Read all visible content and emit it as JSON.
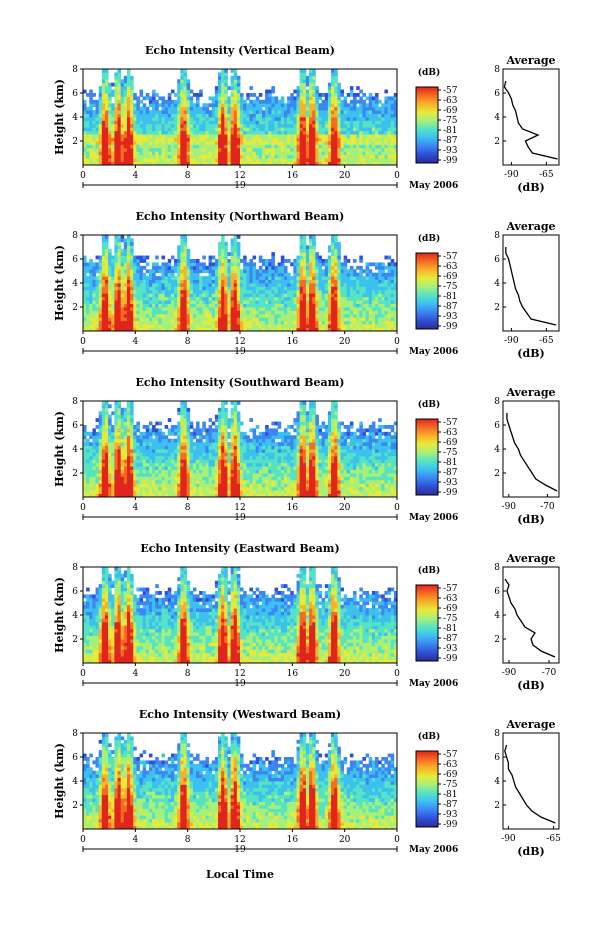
{
  "figure": {
    "x_axis_title": "Local Time",
    "date_label": "May 2006",
    "day_label": "19",
    "x_tick_labels": [
      "0",
      "4",
      "8",
      "12",
      "16",
      "20",
      "0"
    ],
    "y_tick_labels": [
      "2",
      "4",
      "6",
      "8"
    ],
    "height_label": "Height (km)",
    "colorbar_unit": "(dB)",
    "colorbar_ticks": [
      "-57",
      "-63",
      "-69",
      "-75",
      "-81",
      "-87",
      "-93",
      "-99"
    ],
    "average_title": "Average",
    "average_xlabel": "(dB)",
    "colors": {
      "no_data": "#ffffff",
      "colormap": [
        "#2c2c97",
        "#2f4fd6",
        "#3b86f3",
        "#3cc0f0",
        "#55e3c4",
        "#a6f07a",
        "#e8ea3a",
        "#f8b12a",
        "#f66b22",
        "#e0261c"
      ]
    }
  },
  "chart_data": [
    {
      "type": "heatmap",
      "title": "Echo Intensity (Vertical Beam)",
      "x_range": [
        0,
        24
      ],
      "ylim": [
        0,
        8
      ],
      "z_range": [
        -99,
        -57
      ],
      "bright_columns_hours": [
        1.7,
        2.7,
        3.5,
        7.7,
        10.7,
        11.6,
        16.8,
        17.5,
        19.2
      ],
      "average_profile": {
        "xlim": [
          -96,
          -56
        ],
        "xtick_labels": [
          "-90",
          "-65"
        ],
        "height_km": [
          0.5,
          1,
          1.5,
          2,
          2.5,
          3,
          3.5,
          4,
          4.5,
          5,
          5.5,
          6,
          6.5,
          7
        ],
        "power_db": [
          -57,
          -75,
          -78,
          -80,
          -71,
          -82,
          -85,
          -86,
          -87,
          -89,
          -90,
          -92,
          -95,
          -94
        ]
      }
    },
    {
      "type": "heatmap",
      "title": "Echo Intensity (Northward Beam)",
      "x_range": [
        0,
        24
      ],
      "ylim": [
        0,
        8
      ],
      "z_range": [
        -99,
        -57
      ],
      "bright_columns_hours": [
        1.7,
        2.7,
        3.5,
        7.7,
        10.7,
        11.6,
        16.8,
        17.5,
        19.2
      ],
      "average_profile": {
        "xlim": [
          -96,
          -56
        ],
        "xtick_labels": [
          "-90",
          "-65"
        ],
        "height_km": [
          0.5,
          1,
          1.5,
          2,
          2.5,
          3,
          3.5,
          4,
          4.5,
          5,
          5.5,
          6,
          6.5,
          7
        ],
        "power_db": [
          -58,
          -76,
          -79,
          -82,
          -84,
          -85,
          -87,
          -88,
          -89,
          -90,
          -91,
          -92,
          -94,
          -94
        ]
      }
    },
    {
      "type": "heatmap",
      "title": "Echo Intensity (Southward Beam)",
      "x_range": [
        0,
        24
      ],
      "ylim": [
        0,
        8
      ],
      "z_range": [
        -99,
        -57
      ],
      "bright_columns_hours": [
        1.7,
        2.7,
        3.5,
        7.7,
        10.7,
        11.6,
        16.8,
        17.5,
        19.2
      ],
      "average_profile": {
        "xlim": [
          -93,
          -64
        ],
        "xtick_labels": [
          "-90",
          "-70"
        ],
        "height_km": [
          0.5,
          1,
          1.5,
          2,
          2.5,
          3,
          3.5,
          4,
          4.5,
          5,
          5.5,
          6,
          6.5,
          7
        ],
        "power_db": [
          -65,
          -71,
          -76,
          -78,
          -80,
          -82,
          -84,
          -85,
          -87,
          -88,
          -89,
          -90,
          -91,
          -91
        ]
      }
    },
    {
      "type": "heatmap",
      "title": "Echo Intensity (Eastward Beam)",
      "x_range": [
        0,
        24
      ],
      "ylim": [
        0,
        8
      ],
      "z_range": [
        -99,
        -57
      ],
      "bright_columns_hours": [
        1.7,
        2.7,
        3.5,
        7.7,
        10.7,
        11.6,
        16.8,
        17.5,
        19.2
      ],
      "average_profile": {
        "xlim": [
          -93,
          -65
        ],
        "xtick_labels": [
          "-90",
          "-70"
        ],
        "height_km": [
          0.5,
          1,
          1.5,
          2,
          2.5,
          3,
          3.5,
          4,
          4.5,
          5,
          5.5,
          6,
          6.5,
          7
        ],
        "power_db": [
          -67,
          -74,
          -78,
          -79,
          -77,
          -82,
          -84,
          -86,
          -87,
          -89,
          -90,
          -91,
          -90,
          -92
        ]
      }
    },
    {
      "type": "heatmap",
      "title": "Echo Intensity (Westward Beam)",
      "x_range": [
        0,
        24
      ],
      "ylim": [
        0,
        8
      ],
      "z_range": [
        -99,
        -57
      ],
      "bright_columns_hours": [
        1.7,
        2.7,
        3.5,
        7.7,
        10.7,
        11.6,
        16.8,
        17.5,
        19.2
      ],
      "average_profile": {
        "xlim": [
          -93,
          -62
        ],
        "xtick_labels": [
          "-90",
          "-65"
        ],
        "height_km": [
          0.5,
          1,
          1.5,
          2,
          2.5,
          3,
          3.5,
          4,
          4.5,
          5,
          5.5,
          6,
          6.5,
          7
        ],
        "power_db": [
          -64,
          -72,
          -77,
          -80,
          -82,
          -84,
          -86,
          -87,
          -88,
          -90,
          -90,
          -91,
          -92,
          -91
        ]
      }
    }
  ]
}
